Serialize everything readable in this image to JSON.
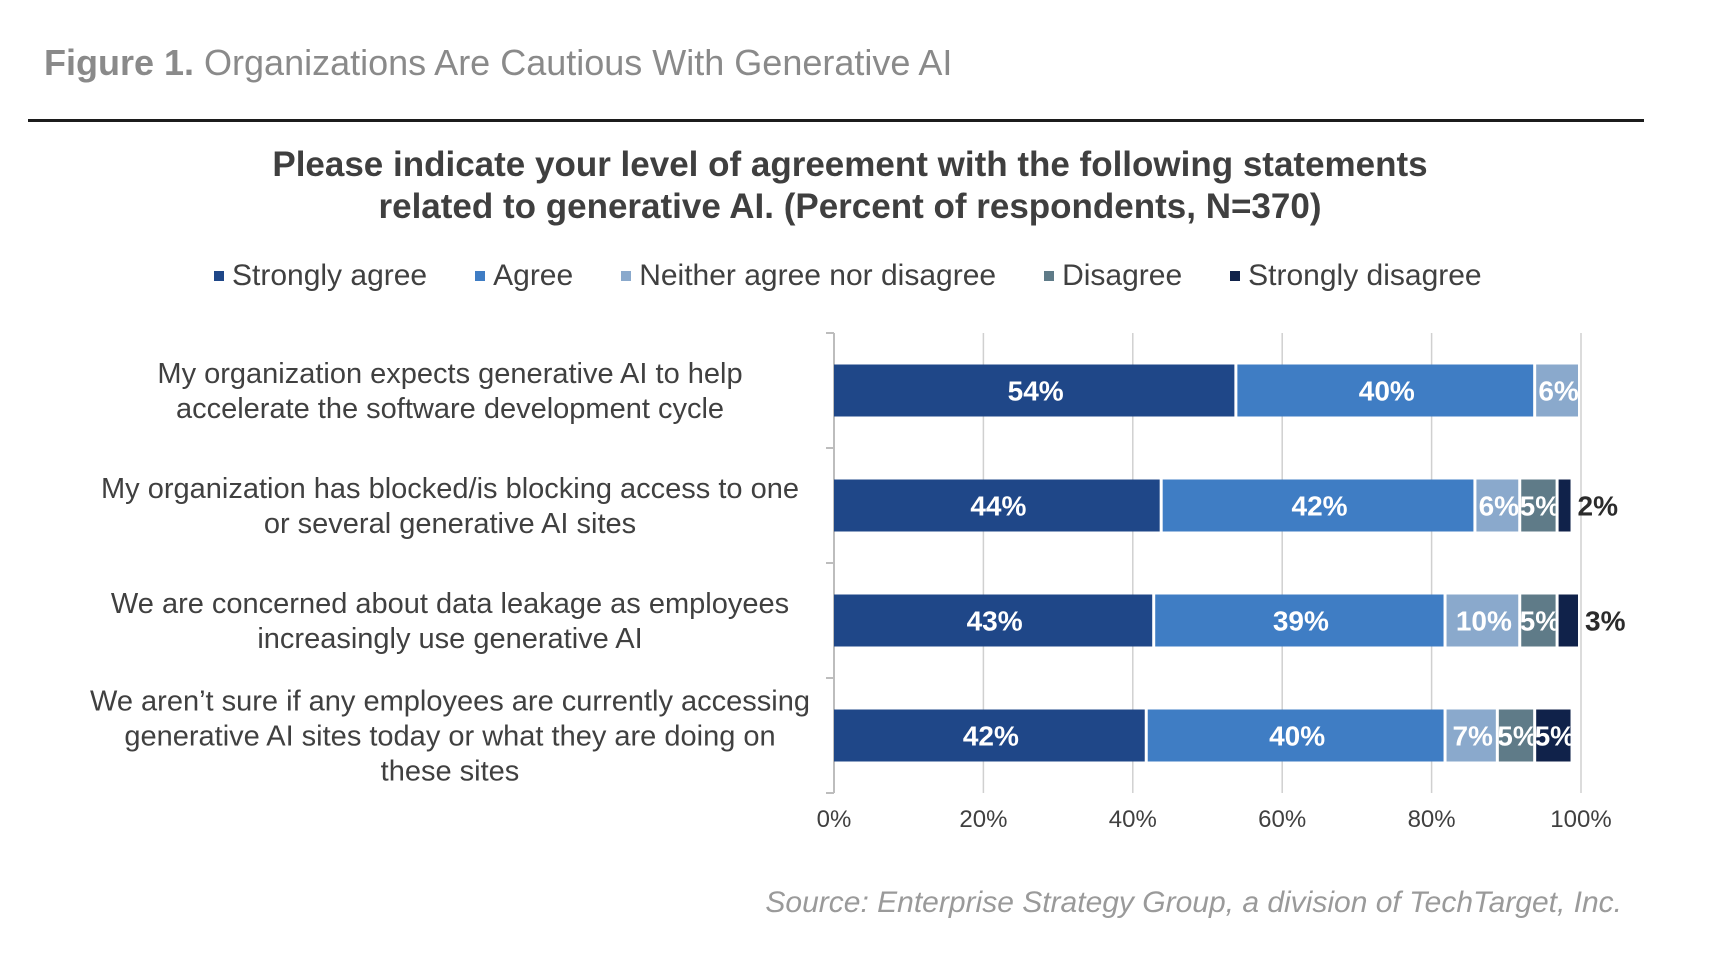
{
  "figure": {
    "label": "Figure 1.",
    "title": "Organizations Are Cautious With Generative AI"
  },
  "source": "Source: Enterprise Strategy Group, a division of TechTarget, Inc.",
  "colors": {
    "strongly_agree": "#1f4788",
    "agree": "#3f7dc4",
    "neither": "#8aa9cc",
    "disagree": "#5f7b88",
    "strongly_disagree": "#10224a",
    "grid": "#d0d0d0",
    "axis_text": "#404040"
  },
  "chart_data": {
    "type": "bar",
    "orientation": "horizontal",
    "stacked": true,
    "title_lines": [
      "Please indicate your level of agreement with the following statements",
      "related to generative AI. (Percent of respondents, N=370)"
    ],
    "categories": [
      [
        "My organization expects generative AI to help",
        "accelerate the software development cycle"
      ],
      [
        "My organization has blocked/is blocking access to one",
        "or several generative AI sites"
      ],
      [
        "We are concerned about data leakage as employees",
        "increasingly use generative AI"
      ],
      [
        "We aren’t sure if any employees are currently accessing",
        "generative AI sites today or what they are doing on",
        "these sites"
      ]
    ],
    "series": [
      {
        "name": "Strongly agree",
        "color_key": "strongly_agree",
        "values": [
          54,
          44,
          43,
          42
        ],
        "labels": [
          "54%",
          "44%",
          "43%",
          "42%"
        ]
      },
      {
        "name": "Agree",
        "color_key": "agree",
        "values": [
          40,
          42,
          39,
          40
        ],
        "labels": [
          "40%",
          "42%",
          "39%",
          "40%"
        ]
      },
      {
        "name": "Neither agree nor disagree",
        "color_key": "neither",
        "values": [
          6,
          6,
          10,
          7
        ],
        "labels": [
          "6%",
          "6%",
          "10%",
          "7%"
        ]
      },
      {
        "name": "Disagree",
        "color_key": "disagree",
        "values": [
          0,
          5,
          5,
          5
        ],
        "labels": [
          "",
          "5%",
          "5%",
          "5%"
        ]
      },
      {
        "name": "Strongly disagree",
        "color_key": "strongly_disagree",
        "values": [
          0,
          2,
          3,
          5
        ],
        "labels": [
          "",
          "2%",
          "3%",
          "5%"
        ]
      }
    ],
    "x_ticks": [
      "0%",
      "20%",
      "40%",
      "60%",
      "80%",
      "100%"
    ],
    "xlim": [
      0,
      100
    ],
    "grid": true,
    "legend_position": "top"
  }
}
